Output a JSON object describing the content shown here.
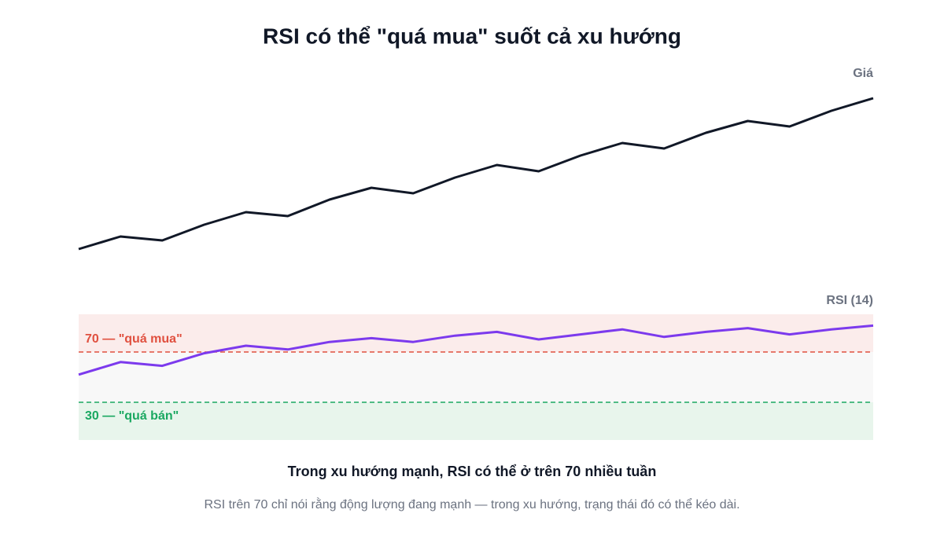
{
  "title": "RSI có thể \"quá mua\" suốt cả xu hướng",
  "caption": "Trong xu hướng mạnh, RSI có thể ở trên 70 nhiều tuần",
  "note": "RSI trên 70 chỉ nói rằng động lượng đang mạnh — trong xu hướng, trạng thái đó có thể kéo dài.",
  "chart_data": [
    {
      "type": "line",
      "series": [
        {
          "name": "Giá",
          "color": "#111827",
          "values": [
            16.5,
            24.5,
            22,
            32,
            40,
            37.5,
            48,
            55.5,
            52,
            62,
            70,
            66,
            76,
            84,
            80.5,
            90.5,
            98,
            94.5,
            104.5,
            112.5
          ]
        }
      ],
      "ylim": [
        0,
        125
      ]
    },
    {
      "type": "line",
      "series": [
        {
          "name": "RSI (14)",
          "color": "#7c3aed",
          "values": [
            52,
            62,
            59,
            69,
            75,
            72,
            78,
            81,
            78,
            83,
            86,
            80,
            84,
            88,
            82,
            86,
            89,
            84,
            88,
            91
          ]
        }
      ],
      "ylim": [
        0,
        100
      ],
      "thresholds": [
        {
          "value": 70,
          "label": "70 — \"quá mua\"",
          "color": "#e0503f",
          "zone_color": "#fbeceb"
        },
        {
          "value": 30,
          "label": "30 — \"quá bán\"",
          "color": "#1aa861",
          "zone_color": "#e8f5ec"
        }
      ],
      "middle_zone_color": "#f8f8f8"
    }
  ]
}
